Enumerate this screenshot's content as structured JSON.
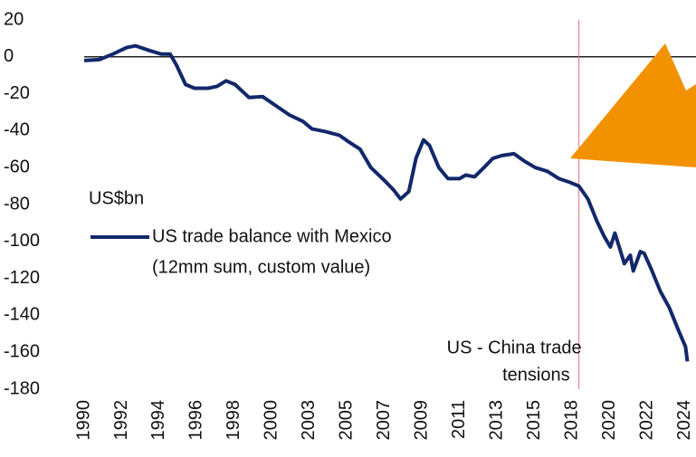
{
  "chart_data": {
    "type": "line",
    "unit_label": "US$bn",
    "series": [
      {
        "name": "US trade balance with Mexico",
        "subtitle": "(12mm sum, custom value)",
        "color": "#13286b",
        "x": [
          0,
          0.4,
          0.77,
          1.13,
          1.37,
          1.73,
          2.05,
          2.29,
          2.46,
          2.7,
          2.94,
          3.3,
          3.54,
          3.78,
          4.02,
          4.39,
          4.75,
          5.11,
          5.47,
          5.83,
          6.07,
          6.43,
          6.8,
          7.04,
          7.35,
          7.64,
          8.0,
          8.24,
          8.43,
          8.65,
          8.84,
          9.04,
          9.2,
          9.45,
          9.69,
          10.0,
          10.17,
          10.4,
          10.65,
          10.89,
          11.13,
          11.45,
          11.73,
          12.02,
          12.34,
          12.65,
          12.94,
          13.18,
          13.42,
          13.66,
          13.86,
          14.02,
          14.14,
          14.27,
          14.39,
          14.55,
          14.63,
          14.82,
          14.92,
          15.11,
          15.35,
          15.59,
          15.83,
          16.02,
          16.07
        ],
        "values": [
          -2,
          -1.5,
          1.5,
          5,
          6,
          3.5,
          1.5,
          1.5,
          -4.5,
          -15,
          -17,
          -17,
          -16,
          -13,
          -15,
          -22,
          -21.5,
          -26.5,
          -31.5,
          -35,
          -39,
          -40.5,
          -42.5,
          -46,
          -50,
          -60,
          -67,
          -72,
          -77,
          -73,
          -55,
          -45,
          -48,
          -60,
          -66,
          -66,
          -64,
          -65,
          -60,
          -55,
          -53.5,
          -52.5,
          -56.5,
          -60,
          -62,
          -66,
          -68,
          -70,
          -77,
          -89,
          -97.5,
          -103,
          -95.5,
          -104,
          -112,
          -107.5,
          -116,
          -105.5,
          -106.5,
          -115,
          -127,
          -136,
          -148,
          -157,
          -165
        ]
      }
    ],
    "xlim": [
      0,
      16.3
    ],
    "xticks": [
      {
        "value": 0,
        "label": "1990"
      },
      {
        "value": 1,
        "label": "1992"
      },
      {
        "value": 2,
        "label": "1994"
      },
      {
        "value": 3,
        "label": "1996"
      },
      {
        "value": 4,
        "label": "1998"
      },
      {
        "value": 5,
        "label": "2000"
      },
      {
        "value": 6,
        "label": "2003"
      },
      {
        "value": 7,
        "label": "2005"
      },
      {
        "value": 8,
        "label": "2007"
      },
      {
        "value": 9,
        "label": "2009"
      },
      {
        "value": 10,
        "label": "2011"
      },
      {
        "value": 11,
        "label": "2013"
      },
      {
        "value": 12,
        "label": "2015"
      },
      {
        "value": 13,
        "label": "2018"
      },
      {
        "value": 14,
        "label": "2020"
      },
      {
        "value": 15,
        "label": "2022"
      },
      {
        "value": 16,
        "label": "2024"
      }
    ],
    "ylim": [
      -180,
      20
    ],
    "yticks": [
      20,
      0,
      -20,
      -40,
      -60,
      -80,
      -100,
      -120,
      -140,
      -160,
      -180
    ],
    "zero_line": 0,
    "reference_line": {
      "x": 13.18,
      "color": "#e07080",
      "label_lines": [
        "US - China trade",
        "tensions"
      ]
    }
  }
}
